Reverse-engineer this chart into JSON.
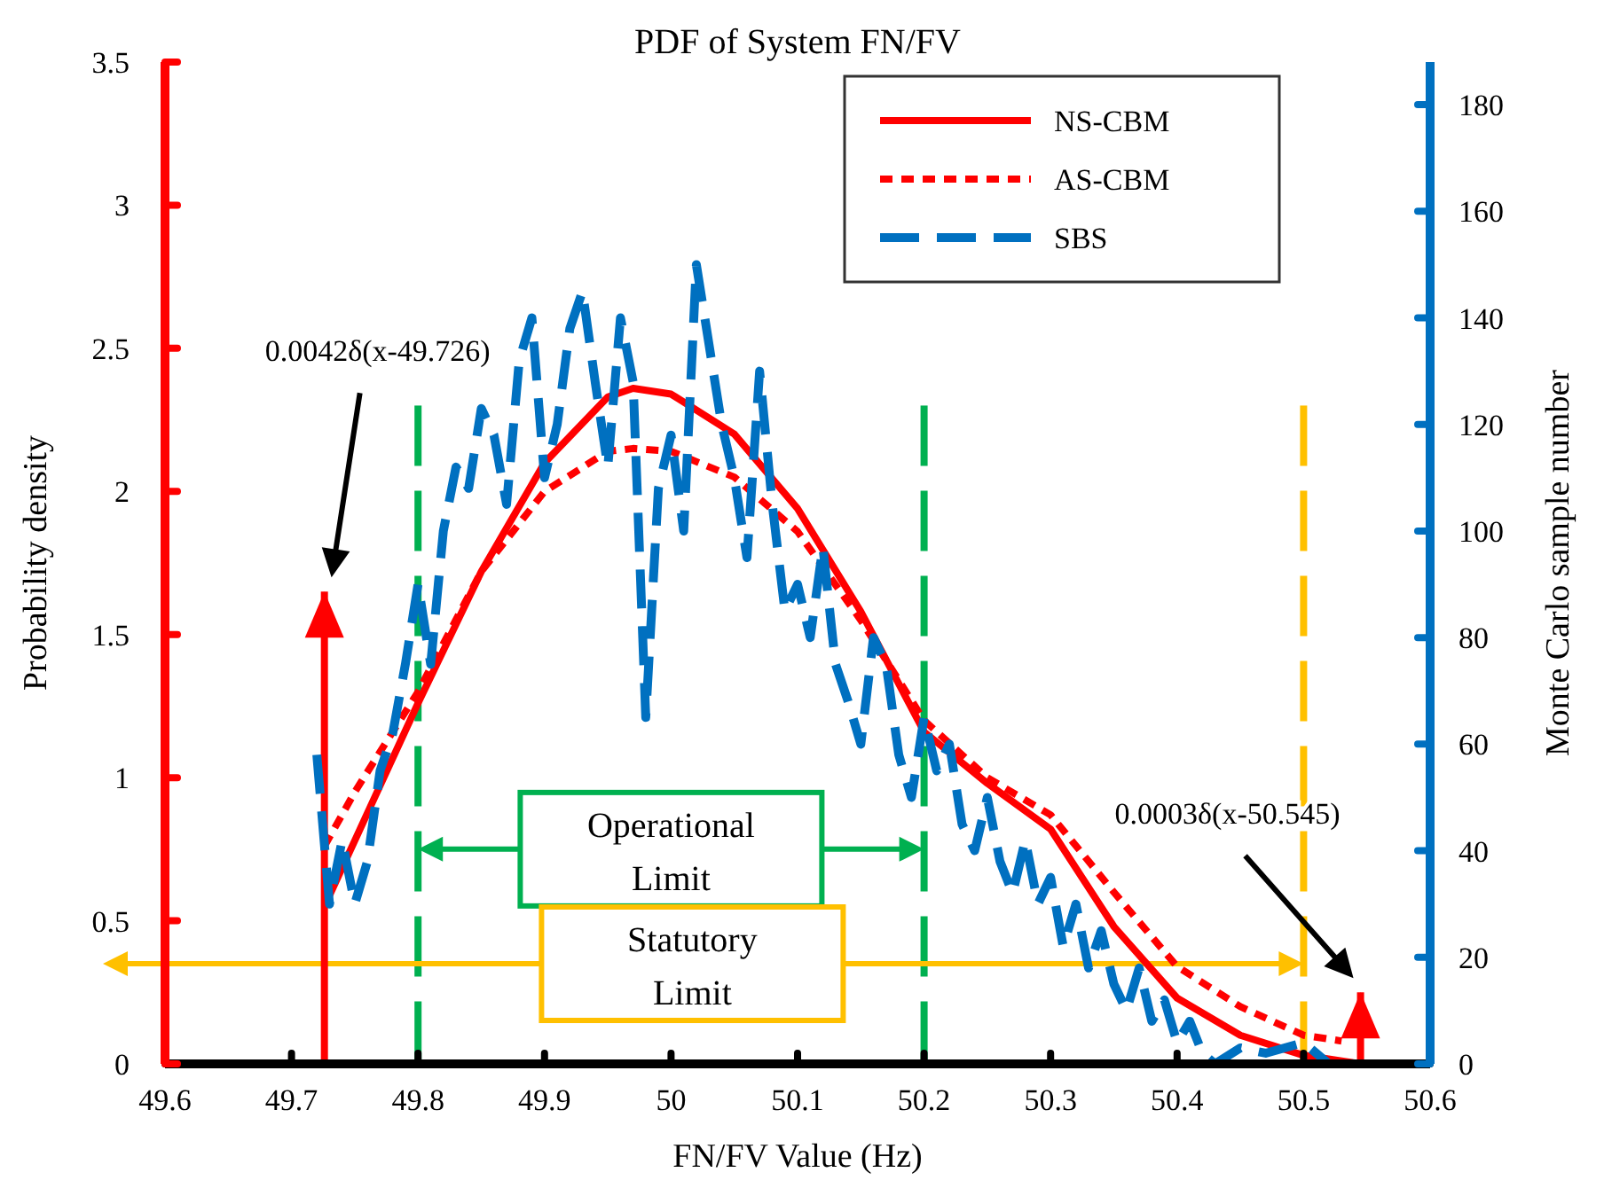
{
  "chart_data": {
    "type": "line",
    "title": "PDF of System FN/FV",
    "xlabel": "FN/FV Value (Hz)",
    "ylabel": "Probability density",
    "y2label": "Monte Carlo sample number",
    "xlim": [
      49.6,
      50.6
    ],
    "xticks": [
      49.6,
      49.7,
      49.8,
      49.9,
      50,
      50.1,
      50.2,
      50.3,
      50.4,
      50.5,
      50.6
    ],
    "ylim": [
      0,
      3.5
    ],
    "yticks": [
      0,
      0.5,
      1,
      1.5,
      2,
      2.5,
      3,
      3.5
    ],
    "y2lim": [
      0,
      188
    ],
    "y2ticks": [
      0,
      20,
      40,
      60,
      80,
      100,
      120,
      140,
      160,
      180
    ],
    "legend": "top right",
    "grid": false,
    "series": [
      {
        "name": "NS-CBM",
        "color": "#ff0000",
        "line_style": "solid",
        "x": [
          49.726,
          49.75,
          49.8,
          49.85,
          49.9,
          49.95,
          49.97,
          50,
          50.05,
          50.1,
          50.15,
          50.2,
          50.25,
          50.3,
          50.35,
          50.4,
          50.45,
          50.5,
          50.545
        ],
        "values": [
          0.55,
          0.78,
          1.26,
          1.72,
          2.1,
          2.33,
          2.36,
          2.34,
          2.2,
          1.94,
          1.58,
          1.16,
          0.98,
          0.82,
          0.48,
          0.23,
          0.1,
          0.03,
          0.0
        ]
      },
      {
        "name": "AS-CBM",
        "color": "#ff0000",
        "line_style": "dotted",
        "x": [
          49.726,
          49.75,
          49.8,
          49.85,
          49.9,
          49.95,
          49.97,
          50,
          50.05,
          50.1,
          50.15,
          50.2,
          50.25,
          50.3,
          50.35,
          50.4,
          50.45,
          50.5,
          50.53
        ],
        "values": [
          0.76,
          0.95,
          1.3,
          1.72,
          2.0,
          2.14,
          2.15,
          2.14,
          2.05,
          1.86,
          1.55,
          1.2,
          1.0,
          0.87,
          0.6,
          0.34,
          0.2,
          0.1,
          0.08
        ]
      },
      {
        "type": "bar",
        "color": "#ff0000",
        "x": [
          49.726,
          50.545
        ],
        "values": [
          1.65,
          0.25
        ]
      },
      {
        "name": "SBS",
        "color": "#0070c0",
        "line_style": "dashed",
        "axis": "y2",
        "x": [
          49.72,
          49.73,
          49.74,
          49.75,
          49.76,
          49.77,
          49.78,
          49.79,
          49.8,
          49.81,
          49.82,
          49.83,
          49.84,
          49.85,
          49.86,
          49.87,
          49.88,
          49.89,
          49.9,
          49.91,
          49.92,
          49.93,
          49.94,
          49.95,
          49.96,
          49.97,
          49.98,
          49.99,
          50,
          50.01,
          50.02,
          50.03,
          50.04,
          50.05,
          50.06,
          50.07,
          50.08,
          50.09,
          50.1,
          50.11,
          50.12,
          50.13,
          50.14,
          50.15,
          50.16,
          50.17,
          50.18,
          50.19,
          50.2,
          50.21,
          50.22,
          50.23,
          50.24,
          50.25,
          50.26,
          50.27,
          50.28,
          50.29,
          50.3,
          50.31,
          50.32,
          50.33,
          50.34,
          50.35,
          50.36,
          50.37,
          50.38,
          50.39,
          50.4,
          50.41,
          50.42,
          50.43,
          50.45,
          50.47,
          50.5,
          50.52
        ],
        "values": [
          58,
          30,
          42,
          30,
          38,
          55,
          62,
          75,
          90,
          75,
          100,
          112,
          108,
          123,
          118,
          105,
          132,
          140,
          110,
          120,
          138,
          145,
          128,
          112,
          140,
          128,
          65,
          108,
          118,
          100,
          150,
          135,
          120,
          110,
          95,
          130,
          105,
          85,
          90,
          80,
          97,
          75,
          68,
          60,
          80,
          75,
          58,
          50,
          65,
          55,
          60,
          45,
          40,
          50,
          38,
          32,
          42,
          30,
          35,
          22,
          30,
          18,
          25,
          15,
          10,
          18,
          8,
          12,
          4,
          8,
          2,
          0,
          3,
          2,
          4,
          0
        ]
      }
    ],
    "ref_lines": [
      {
        "axis": "x",
        "value": 49.8,
        "color": "#00b050",
        "line_style": "dashed"
      },
      {
        "axis": "x",
        "value": 50.2,
        "color": "#00b050",
        "line_style": "dashed"
      },
      {
        "axis": "x",
        "value": 50.5,
        "color": "#ffc000",
        "line_style": "dashed"
      }
    ],
    "annotations": [
      "0.0042δ(x-49.726)",
      "0.0003δ(x-50.545)",
      "Operational Limit",
      "Statutory Limit"
    ]
  }
}
